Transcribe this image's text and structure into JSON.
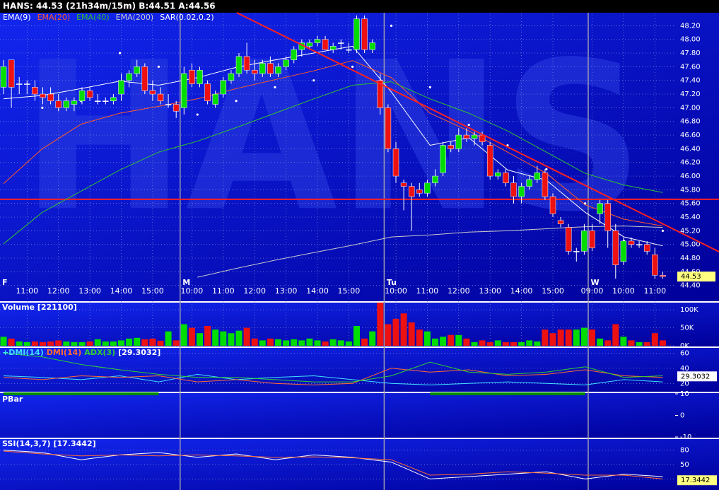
{
  "header": "HANS: 44.53 (21h34m/15m)  B:44.51  A:44.56",
  "watermark": "HANS",
  "chart_data": [
    {
      "type": "candlestick",
      "categories": [
        null,
        null,
        null,
        "11:00",
        null,
        null,
        null,
        "12:00",
        null,
        null,
        null,
        "13:00",
        null,
        null,
        null,
        "14:00",
        null,
        null,
        null,
        "15:00",
        null,
        null,
        null,
        null,
        "10:00",
        null,
        null,
        null,
        "11:00",
        null,
        null,
        null,
        "12:00",
        null,
        null,
        null,
        "13:00",
        null,
        null,
        null,
        "14:00",
        null,
        null,
        null,
        "15:00",
        null,
        null,
        null,
        null,
        null,
        "10:00",
        null,
        null,
        null,
        "11:00",
        null,
        null,
        null,
        "12:00",
        null,
        null,
        null,
        "13:00",
        null,
        null,
        null,
        "14:00",
        null,
        null,
        null,
        "15:00",
        null,
        null,
        null,
        null,
        "09:00",
        null,
        null,
        null,
        "10:00",
        null,
        null,
        null,
        "11:00",
        null
      ],
      "days": [
        "F",
        null,
        null,
        null,
        null,
        null,
        null,
        null,
        null,
        null,
        null,
        null,
        null,
        null,
        null,
        null,
        null,
        null,
        null,
        null,
        null,
        null,
        null,
        "M",
        null,
        null,
        null,
        null,
        null,
        null,
        null,
        null,
        null,
        null,
        null,
        null,
        null,
        null,
        null,
        null,
        null,
        null,
        null,
        null,
        null,
        null,
        null,
        null,
        null,
        "Tu",
        null,
        null,
        null,
        null,
        null,
        null,
        null,
        null,
        null,
        null,
        null,
        null,
        null,
        null,
        null,
        null,
        null,
        null,
        null,
        null,
        null,
        null,
        null,
        null,
        null,
        "W",
        null,
        null,
        null,
        null,
        null,
        null,
        null,
        null,
        null
      ],
      "open": [
        47.3,
        47.7,
        47.35,
        47.35,
        47.3,
        47.2,
        47.2,
        47.1,
        47.0,
        47.05,
        47.1,
        47.25,
        47.1,
        47.1,
        47.1,
        47.2,
        47.4,
        47.5,
        47.6,
        47.25,
        47.2,
        47.05,
        47.05,
        47.0,
        47.55,
        47.35,
        47.35,
        47.05,
        47.2,
        47.4,
        47.5,
        47.75,
        47.55,
        47.5,
        47.65,
        47.5,
        47.6,
        47.7,
        47.85,
        47.9,
        47.95,
        48.0,
        47.85,
        47.95,
        47.85,
        47.85,
        48.3,
        47.85,
        47.4,
        47.0,
        46.4,
        45.9,
        45.85,
        45.8,
        45.75,
        45.9,
        46.05,
        46.45,
        46.4,
        46.6,
        46.55,
        46.6,
        46.45,
        46.0,
        46.05,
        45.9,
        45.7,
        45.85,
        45.95,
        46.05,
        45.7,
        45.35,
        45.25,
        44.9,
        44.9,
        45.2,
        45.45,
        45.6,
        45.2,
        44.75,
        45.05,
        45.0,
        45.0,
        44.85,
        44.55
      ],
      "high": [
        47.7,
        47.7,
        47.45,
        47.4,
        47.4,
        47.3,
        47.3,
        47.2,
        47.15,
        47.15,
        47.3,
        47.3,
        47.2,
        47.15,
        47.2,
        47.5,
        47.55,
        47.7,
        47.65,
        47.4,
        47.3,
        47.2,
        47.1,
        47.6,
        47.65,
        47.6,
        47.4,
        47.25,
        47.45,
        47.55,
        47.8,
        47.95,
        47.7,
        47.7,
        47.75,
        47.65,
        47.75,
        47.9,
        48.0,
        48.0,
        48.05,
        48.05,
        47.95,
        48.0,
        47.95,
        48.35,
        48.35,
        48.0,
        47.5,
        47.05,
        46.5,
        45.95,
        45.9,
        45.9,
        45.95,
        46.1,
        46.5,
        46.5,
        46.7,
        46.7,
        46.65,
        46.65,
        46.5,
        46.1,
        46.1,
        46.0,
        45.9,
        46.0,
        46.15,
        46.1,
        45.75,
        45.4,
        45.3,
        44.95,
        45.3,
        45.3,
        45.65,
        45.65,
        45.3,
        45.1,
        45.1,
        45.05,
        45.05,
        44.95,
        44.6
      ],
      "low": [
        47.2,
        47.0,
        47.2,
        47.2,
        47.1,
        47.05,
        47.05,
        46.95,
        46.95,
        46.95,
        47.05,
        47.1,
        47.05,
        47.05,
        47.05,
        47.1,
        47.3,
        47.45,
        47.2,
        47.1,
        47.05,
        47.0,
        46.85,
        46.9,
        47.3,
        47.3,
        47.05,
        47.0,
        47.15,
        47.35,
        47.45,
        47.5,
        47.4,
        47.45,
        47.45,
        47.45,
        47.55,
        47.65,
        47.75,
        47.85,
        47.9,
        47.85,
        47.8,
        47.85,
        47.8,
        47.8,
        47.8,
        47.8,
        46.9,
        46.35,
        45.9,
        45.5,
        45.2,
        45.7,
        45.7,
        45.85,
        46.0,
        46.35,
        46.35,
        46.5,
        46.45,
        46.45,
        45.95,
        45.95,
        45.85,
        45.6,
        45.6,
        45.8,
        45.9,
        45.65,
        45.4,
        45.25,
        44.85,
        44.75,
        44.85,
        44.9,
        45.3,
        44.95,
        44.5,
        44.7,
        44.95,
        44.95,
        44.85,
        44.5,
        44.5
      ],
      "close": [
        47.6,
        47.3,
        47.35,
        47.35,
        47.2,
        47.15,
        47.1,
        47.0,
        47.1,
        47.1,
        47.25,
        47.15,
        47.1,
        47.1,
        47.15,
        47.4,
        47.5,
        47.6,
        47.25,
        47.2,
        47.1,
        47.05,
        46.95,
        47.5,
        47.35,
        47.55,
        47.1,
        47.2,
        47.4,
        47.5,
        47.75,
        47.55,
        47.5,
        47.65,
        47.5,
        47.6,
        47.7,
        47.85,
        47.95,
        47.95,
        48.0,
        47.85,
        47.9,
        47.95,
        47.85,
        48.3,
        47.85,
        47.95,
        47.0,
        46.4,
        46.0,
        45.85,
        45.7,
        45.75,
        45.9,
        46.0,
        46.45,
        46.4,
        46.6,
        46.55,
        46.6,
        46.5,
        46.0,
        46.05,
        45.9,
        45.7,
        45.85,
        45.95,
        46.05,
        45.7,
        45.45,
        45.3,
        44.9,
        44.9,
        45.2,
        44.95,
        45.6,
        45.2,
        44.7,
        45.05,
        45.0,
        45.0,
        44.9,
        44.55,
        44.53
      ],
      "up_color": "#00dd00",
      "down_color": "#ee1111",
      "overlays": [
        {
          "name": "EMA(9)",
          "color": "#ffffff",
          "values": [
            47.13,
            47.18,
            47.28,
            47.39,
            47.33,
            47.44,
            47.59,
            47.7,
            47.8,
            47.9,
            47.23,
            46.45,
            46.56,
            46.09,
            45.94,
            45.47,
            45.11,
            44.98
          ]
        },
        {
          "name": "EMA(20)",
          "color": "#ff5a28",
          "values": [
            45.89,
            46.4,
            46.76,
            46.92,
            47.02,
            47.13,
            47.28,
            47.41,
            47.54,
            47.69,
            47.44,
            46.92,
            46.66,
            46.35,
            46.04,
            45.58,
            45.37,
            45.27
          ]
        },
        {
          "name": "EMA(40)",
          "color": "#30c030",
          "values": [
            45.01,
            45.47,
            45.78,
            46.09,
            46.35,
            46.51,
            46.71,
            46.92,
            47.13,
            47.33,
            47.38,
            47.13,
            46.92,
            46.66,
            46.35,
            46.04,
            45.87,
            45.76
          ]
        },
        {
          "name": "EMA(200)",
          "color": "#c8c8c8",
          "values": [
            null,
            null,
            null,
            null,
            null,
            44.52,
            44.65,
            44.77,
            44.88,
            44.99,
            45.11,
            45.14,
            45.18,
            45.2,
            45.23,
            45.26,
            45.27,
            45.25
          ]
        },
        {
          "name": "SAR(0.02,0.2)",
          "color": "#ffffff",
          "dots": true,
          "values": [
            null,
            47.0,
            47.1,
            47.8,
            47.6,
            46.9,
            47.1,
            47.3,
            47.4,
            47.6,
            48.2,
            47.3,
            46.75,
            46.45,
            46.1,
            45.6,
            45.05,
            45.2
          ]
        }
      ],
      "hline": 45.66,
      "hline_color": "#ff2020",
      "last": 44.53,
      "ylim": [
        44.18,
        48.39
      ],
      "yticks": [
        {
          "value": 48.2,
          "label": "48.20"
        },
        {
          "value": 48.0,
          "label": "48.00"
        },
        {
          "value": 47.8,
          "label": "47.80"
        },
        {
          "value": 47.6,
          "label": "47.60"
        },
        {
          "value": 47.4,
          "label": "47.40"
        },
        {
          "value": 47.2,
          "label": "47.20"
        },
        {
          "value": 47.0,
          "label": "47.00"
        },
        {
          "value": 46.8,
          "label": "46.80"
        },
        {
          "value": 46.6,
          "label": "46.60"
        },
        {
          "value": 46.4,
          "label": "46.40"
        },
        {
          "value": 46.2,
          "label": "46.20"
        },
        {
          "value": 46.0,
          "label": "46.00"
        },
        {
          "value": 45.8,
          "label": "45.80"
        },
        {
          "value": 45.6,
          "label": "45.60"
        },
        {
          "value": 45.4,
          "label": "45.40"
        },
        {
          "value": 45.2,
          "label": "45.20"
        },
        {
          "value": 45.0,
          "label": "45.00"
        },
        {
          "value": 44.8,
          "label": "44.80"
        },
        {
          "value": 44.6,
          "label": "44.60"
        },
        {
          "value": 44.4,
          "label": "44.40"
        }
      ],
      "grid": true
    },
    {
      "type": "bar",
      "title": "Volume [221100]",
      "values": [
        25,
        20,
        12,
        10,
        12,
        10,
        12,
        15,
        12,
        10,
        10,
        12,
        18,
        12,
        12,
        15,
        20,
        22,
        18,
        20,
        14,
        40,
        15,
        60,
        50,
        35,
        55,
        45,
        40,
        35,
        42,
        50,
        20,
        15,
        20,
        18,
        15,
        18,
        15,
        20,
        15,
        12,
        18,
        15,
        12,
        55,
        20,
        40,
        120,
        60,
        75,
        90,
        65,
        45,
        40,
        20,
        25,
        30,
        30,
        20,
        10,
        15,
        10,
        15,
        10,
        10,
        10,
        15,
        12,
        45,
        35,
        45,
        45,
        45,
        50,
        45,
        20,
        15,
        60,
        25,
        15,
        10,
        10,
        35,
        15
      ],
      "ylim": [
        0,
        116
      ],
      "yticks": [
        {
          "value": 100,
          "label": "100K"
        },
        {
          "value": 50,
          "label": "50K"
        },
        {
          "value": 0,
          "label": "0K"
        }
      ],
      "grid": true
    },
    {
      "type": "line",
      "title": "[29.3032]",
      "series": [
        {
          "name": "+DMI(14)",
          "color": "#40e0ff",
          "values": [
            30,
            28,
            25,
            30,
            22,
            32,
            25,
            28,
            30,
            25,
            20,
            18,
            20,
            22,
            20,
            18,
            25,
            22
          ]
        },
        {
          "name": "DMI(14)",
          "color": "#ff6a30",
          "values": [
            28,
            25,
            30,
            28,
            30,
            22,
            25,
            20,
            18,
            20,
            40,
            35,
            38,
            30,
            32,
            38,
            30,
            28
          ]
        },
        {
          "name": "ADX(3)",
          "color": "#30d030",
          "values": [
            60,
            55,
            45,
            38,
            32,
            28,
            28,
            25,
            22,
            22,
            30,
            48,
            35,
            32,
            35,
            42,
            28,
            30
          ]
        }
      ],
      "last": 29.3032,
      "ylim": [
        10,
        65
      ],
      "yticks": [
        60,
        40,
        20
      ],
      "grid": true
    },
    {
      "type": "line",
      "title": "PBar",
      "color": "#008a00",
      "thick": true,
      "values": [
        10,
        10,
        10,
        10,
        10,
        null,
        null,
        null,
        null,
        null,
        null,
        10,
        10,
        10,
        10,
        10,
        null,
        null
      ],
      "ylim": [
        -10,
        10
      ],
      "yticks": [
        10,
        0,
        -10
      ],
      "grid": false
    },
    {
      "type": "line",
      "title": "SSI(14,3,7)",
      "subtitle": "[17.3442]",
      "series": [
        {
          "color": "#ffffff",
          "values": [
            80,
            75,
            60,
            70,
            75,
            65,
            72,
            60,
            70,
            65,
            55,
            20,
            25,
            30,
            35,
            20,
            30,
            25
          ]
        },
        {
          "color": "#ff6a30",
          "values": [
            78,
            72,
            68,
            70,
            68,
            70,
            68,
            65,
            66,
            64,
            60,
            28,
            30,
            35,
            32,
            28,
            28,
            20
          ]
        }
      ],
      "last": 17.3442,
      "ylim": [
        0,
        100
      ],
      "yticks": [
        80,
        50,
        20
      ],
      "grid": true
    }
  ]
}
